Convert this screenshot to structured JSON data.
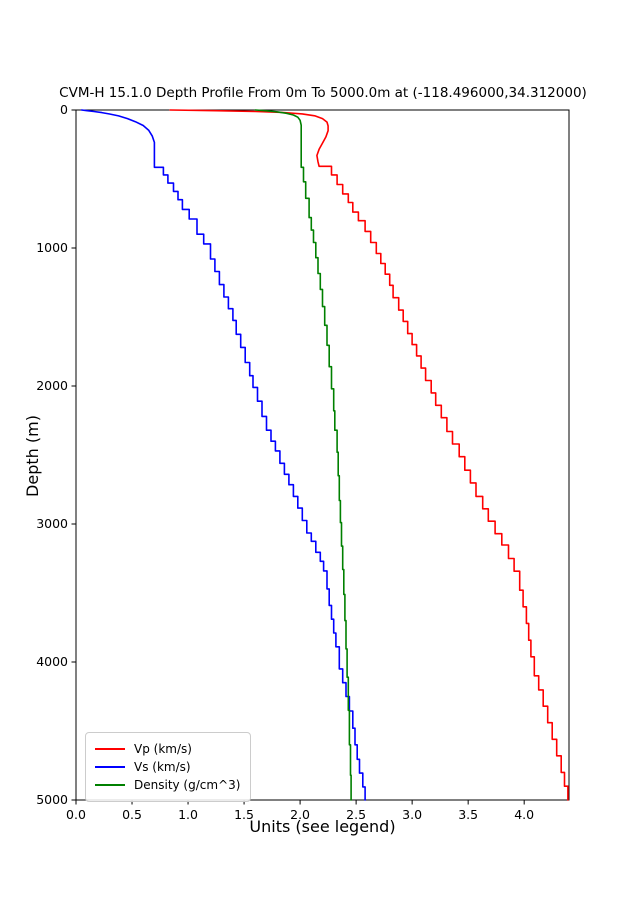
{
  "title": "CVM-H 15.1.0 Depth Profile From 0m To 5000.0m at (-118.496000,34.312000)",
  "chart_data": {
    "type": "line",
    "title": "CVM-H 15.1.0 Depth Profile From 0m To 5000.0m at (-118.496000,34.312000)",
    "xlabel": "Units (see legend)",
    "ylabel": "Depth (m)",
    "xlim": [
      0.0,
      4.4
    ],
    "ylim": [
      0,
      5000
    ],
    "y_inverted": true,
    "grid": false,
    "xticks": [
      0.0,
      0.5,
      1.0,
      1.5,
      2.0,
      2.5,
      3.0,
      3.5,
      4.0
    ],
    "xtick_labels": [
      "0.0",
      "0.5",
      "1.0",
      "1.5",
      "2.0",
      "2.5",
      "3.0",
      "3.5",
      "4.0"
    ],
    "yticks": [
      0,
      1000,
      2000,
      3000,
      4000,
      5000
    ],
    "ytick_labels": [
      "0",
      "1000",
      "2000",
      "3000",
      "4000",
      "5000"
    ],
    "legend": {
      "position": "lower left",
      "entries": [
        {
          "label": "Vp (km/s)",
          "color": "#ff0000"
        },
        {
          "label": "Vs (km/s)",
          "color": "#0000ff"
        },
        {
          "label": "Density (g/cm^3)",
          "color": "#008000"
        }
      ]
    },
    "series": [
      {
        "id": "vp",
        "name": "Vp (km/s)",
        "color": "#ff0000",
        "head": [
          [
            0.84,
            0
          ],
          [
            1.25,
            5
          ],
          [
            1.6,
            11
          ],
          [
            1.85,
            18
          ],
          [
            2.02,
            28
          ],
          [
            2.13,
            42
          ],
          [
            2.2,
            62
          ],
          [
            2.24,
            88
          ],
          [
            2.25,
            115
          ],
          [
            2.25,
            150
          ],
          [
            2.23,
            195
          ],
          [
            2.2,
            240
          ],
          [
            2.17,
            285
          ],
          [
            2.15,
            330
          ],
          [
            2.16,
            375
          ],
          [
            2.17,
            408
          ]
        ],
        "steps": [
          [
            2.28,
            408,
            470
          ],
          [
            2.33,
            470,
            540
          ],
          [
            2.38,
            540,
            608
          ],
          [
            2.43,
            608,
            670
          ],
          [
            2.47,
            670,
            740
          ],
          [
            2.52,
            740,
            802
          ],
          [
            2.58,
            802,
            880
          ],
          [
            2.63,
            880,
            960
          ],
          [
            2.68,
            960,
            1040
          ],
          [
            2.72,
            1040,
            1112
          ],
          [
            2.76,
            1112,
            1190
          ],
          [
            2.8,
            1190,
            1270
          ],
          [
            2.83,
            1270,
            1360
          ],
          [
            2.88,
            1360,
            1450
          ],
          [
            2.92,
            1450,
            1532
          ],
          [
            2.96,
            1532,
            1620
          ],
          [
            3.0,
            1620,
            1700
          ],
          [
            3.04,
            1700,
            1782
          ],
          [
            3.08,
            1782,
            1870
          ],
          [
            3.12,
            1870,
            1960
          ],
          [
            3.17,
            1960,
            2050
          ],
          [
            3.21,
            2050,
            2140
          ],
          [
            3.26,
            2140,
            2230
          ],
          [
            3.31,
            2230,
            2330
          ],
          [
            3.36,
            2330,
            2420
          ],
          [
            3.42,
            2420,
            2512
          ],
          [
            3.47,
            2512,
            2610
          ],
          [
            3.52,
            2610,
            2702
          ],
          [
            3.57,
            2702,
            2800
          ],
          [
            3.63,
            2800,
            2890
          ],
          [
            3.68,
            2890,
            2980
          ],
          [
            3.74,
            2980,
            3070
          ],
          [
            3.8,
            3070,
            3152
          ],
          [
            3.86,
            3152,
            3250
          ],
          [
            3.91,
            3250,
            3342
          ],
          [
            3.96,
            3342,
            3480
          ],
          [
            3.99,
            3480,
            3600
          ],
          [
            4.02,
            3600,
            3720
          ],
          [
            4.04,
            3720,
            3842
          ],
          [
            4.06,
            3842,
            3962
          ],
          [
            4.09,
            3962,
            4100
          ],
          [
            4.13,
            4100,
            4202
          ],
          [
            4.17,
            4202,
            4320
          ],
          [
            4.21,
            4320,
            4440
          ],
          [
            4.25,
            4440,
            4560
          ],
          [
            4.29,
            4560,
            4680
          ],
          [
            4.33,
            4680,
            4800
          ],
          [
            4.36,
            4800,
            4900
          ],
          [
            4.39,
            4900,
            5000
          ]
        ]
      },
      {
        "id": "vs",
        "name": "Vs (km/s)",
        "color": "#0000ff",
        "head": [
          [
            0.05,
            0
          ],
          [
            0.1,
            5
          ],
          [
            0.16,
            11
          ],
          [
            0.23,
            19
          ],
          [
            0.3,
            29
          ],
          [
            0.38,
            43
          ],
          [
            0.46,
            62
          ],
          [
            0.53,
            85
          ],
          [
            0.6,
            112
          ],
          [
            0.65,
            148
          ],
          [
            0.68,
            188
          ],
          [
            0.7,
            235
          ],
          [
            0.7,
            415
          ]
        ],
        "steps": [
          [
            0.78,
            415,
            470
          ],
          [
            0.82,
            470,
            530
          ],
          [
            0.87,
            530,
            590
          ],
          [
            0.91,
            590,
            650
          ],
          [
            0.95,
            650,
            720
          ],
          [
            1.01,
            720,
            790
          ],
          [
            1.08,
            790,
            900
          ],
          [
            1.14,
            900,
            970
          ],
          [
            1.2,
            970,
            1080
          ],
          [
            1.24,
            1080,
            1170
          ],
          [
            1.28,
            1170,
            1265
          ],
          [
            1.32,
            1265,
            1355
          ],
          [
            1.36,
            1355,
            1440
          ],
          [
            1.4,
            1440,
            1525
          ],
          [
            1.43,
            1525,
            1625
          ],
          [
            1.47,
            1625,
            1720
          ],
          [
            1.51,
            1720,
            1830
          ],
          [
            1.55,
            1830,
            1925
          ],
          [
            1.58,
            1925,
            2010
          ],
          [
            1.62,
            2010,
            2110
          ],
          [
            1.66,
            2110,
            2220
          ],
          [
            1.7,
            2220,
            2320
          ],
          [
            1.74,
            2320,
            2400
          ],
          [
            1.78,
            2400,
            2470
          ],
          [
            1.82,
            2470,
            2560
          ],
          [
            1.86,
            2560,
            2640
          ],
          [
            1.9,
            2640,
            2715
          ],
          [
            1.94,
            2715,
            2800
          ],
          [
            1.98,
            2800,
            2885
          ],
          [
            2.02,
            2885,
            2975
          ],
          [
            2.06,
            2975,
            3065
          ],
          [
            2.1,
            3065,
            3125
          ],
          [
            2.14,
            3125,
            3205
          ],
          [
            2.18,
            3205,
            3270
          ],
          [
            2.21,
            3270,
            3340
          ],
          [
            2.24,
            3340,
            3470
          ],
          [
            2.26,
            3470,
            3590
          ],
          [
            2.28,
            3590,
            3690
          ],
          [
            2.3,
            3690,
            3790
          ],
          [
            2.32,
            3790,
            3890
          ],
          [
            2.35,
            3890,
            4050
          ],
          [
            2.38,
            4050,
            4150
          ],
          [
            2.41,
            4150,
            4250
          ],
          [
            2.44,
            4250,
            4355
          ],
          [
            2.47,
            4355,
            4480
          ],
          [
            2.49,
            4480,
            4600
          ],
          [
            2.51,
            4600,
            4705
          ],
          [
            2.53,
            4705,
            4805
          ],
          [
            2.56,
            4805,
            4905
          ],
          [
            2.58,
            4905,
            5000
          ]
        ]
      },
      {
        "id": "density",
        "name": "Density (g/cm^3)",
        "color": "#008000",
        "head": [
          [
            1.6,
            0
          ],
          [
            1.7,
            6
          ],
          [
            1.8,
            14
          ],
          [
            1.88,
            24
          ],
          [
            1.94,
            36
          ],
          [
            1.98,
            52
          ],
          [
            2.0,
            75
          ],
          [
            2.01,
            110
          ],
          [
            2.01,
            415
          ]
        ],
        "steps": [
          [
            2.03,
            415,
            520
          ],
          [
            2.05,
            520,
            640
          ],
          [
            2.08,
            640,
            780
          ],
          [
            2.1,
            780,
            870
          ],
          [
            2.12,
            870,
            960
          ],
          [
            2.14,
            960,
            1070
          ],
          [
            2.16,
            1070,
            1185
          ],
          [
            2.18,
            1185,
            1300
          ],
          [
            2.2,
            1300,
            1425
          ],
          [
            2.22,
            1425,
            1560
          ],
          [
            2.24,
            1560,
            1705
          ],
          [
            2.26,
            1705,
            1860
          ],
          [
            2.28,
            1860,
            2020
          ],
          [
            2.3,
            2020,
            2180
          ],
          [
            2.31,
            2180,
            2320
          ],
          [
            2.33,
            2320,
            2480
          ],
          [
            2.34,
            2480,
            2650
          ],
          [
            2.35,
            2650,
            2830
          ],
          [
            2.36,
            2830,
            2990
          ],
          [
            2.37,
            2990,
            3160
          ],
          [
            2.38,
            3160,
            3330
          ],
          [
            2.39,
            3330,
            3510
          ],
          [
            2.4,
            3510,
            3700
          ],
          [
            2.41,
            3700,
            3905
          ],
          [
            2.42,
            3905,
            4110
          ],
          [
            2.43,
            4110,
            4350
          ],
          [
            2.44,
            4350,
            4600
          ],
          [
            2.45,
            4600,
            4820
          ],
          [
            2.455,
            4820,
            5000
          ]
        ]
      }
    ]
  }
}
